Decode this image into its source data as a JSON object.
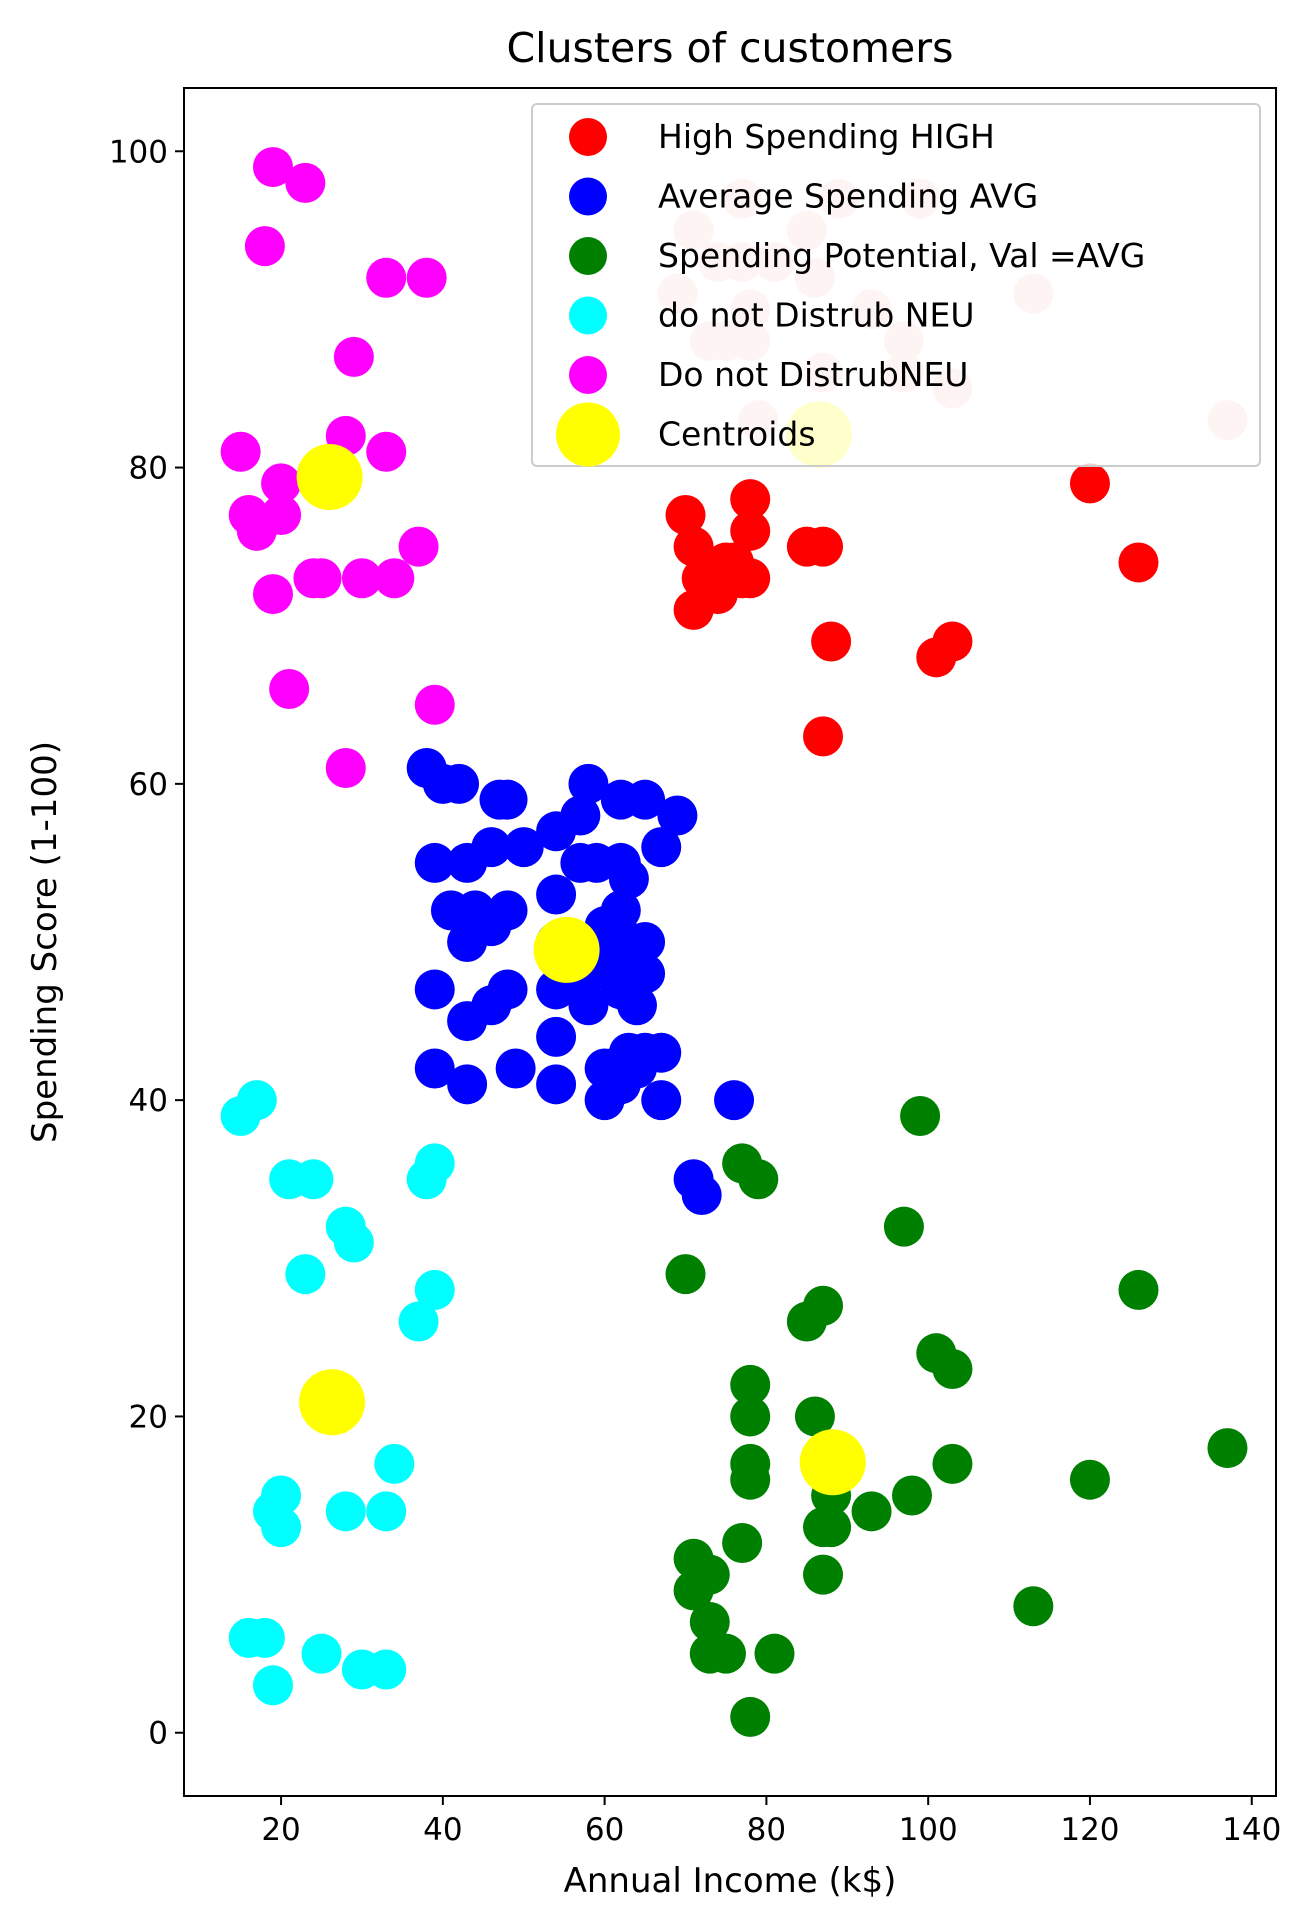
{
  "chart_data": {
    "type": "scatter",
    "title": "Clusters of customers",
    "xlabel": "Annual Income (k$)",
    "ylabel": "Spending Score (1-100)",
    "xlim": [
      8,
      143
    ],
    "ylim": [
      -4,
      104
    ],
    "xticks": [
      20,
      40,
      60,
      80,
      100,
      120,
      140
    ],
    "yticks": [
      0,
      20,
      40,
      60,
      80,
      100
    ],
    "grid": false,
    "legend_position": "top-right",
    "series": [
      {
        "name": "High Spending HIGH",
        "color": "#ff0000",
        "points": [
          [
            70,
            77
          ],
          [
            71,
            75
          ],
          [
            71,
            71
          ],
          [
            72,
            73
          ],
          [
            73,
            73
          ],
          [
            74,
            72
          ],
          [
            75,
            74
          ],
          [
            76,
            74
          ],
          [
            77,
            73
          ],
          [
            78,
            78
          ],
          [
            78,
            76
          ],
          [
            78,
            73
          ],
          [
            85,
            75
          ],
          [
            87,
            75
          ],
          [
            87,
            63
          ],
          [
            88,
            69
          ],
          [
            101,
            68
          ],
          [
            103,
            69
          ],
          [
            120,
            79
          ],
          [
            126,
            74
          ]
        ]
      },
      {
        "name": "Average Spending AVG",
        "color": "#0000ff",
        "points": [
          [
            38,
            61
          ],
          [
            39,
            55
          ],
          [
            39,
            47
          ],
          [
            39,
            42
          ],
          [
            40,
            60
          ],
          [
            41,
            52
          ],
          [
            42,
            60
          ],
          [
            43,
            55
          ],
          [
            43,
            50
          ],
          [
            43,
            45
          ],
          [
            43,
            41
          ],
          [
            44,
            52
          ],
          [
            46,
            56
          ],
          [
            46,
            51
          ],
          [
            46,
            46
          ],
          [
            47,
            59
          ],
          [
            48,
            59
          ],
          [
            48,
            52
          ],
          [
            48,
            47
          ],
          [
            49,
            42
          ],
          [
            50,
            56
          ],
          [
            54,
            57
          ],
          [
            54,
            53
          ],
          [
            54,
            50
          ],
          [
            54,
            47
          ],
          [
            54,
            44
          ],
          [
            54,
            41
          ],
          [
            57,
            58
          ],
          [
            57,
            55
          ],
          [
            58,
            60
          ],
          [
            58,
            48
          ],
          [
            58,
            46
          ],
          [
            59,
            55
          ],
          [
            60,
            51
          ],
          [
            60,
            49
          ],
          [
            60,
            42
          ],
          [
            60,
            40
          ],
          [
            61,
            42
          ],
          [
            62,
            59
          ],
          [
            62,
            55
          ],
          [
            62,
            52
          ],
          [
            62,
            47
          ],
          [
            62,
            41
          ],
          [
            63,
            54
          ],
          [
            63,
            50
          ],
          [
            63,
            43
          ],
          [
            64,
            48
          ],
          [
            64,
            46
          ],
          [
            64,
            42
          ],
          [
            65,
            59
          ],
          [
            65,
            50
          ],
          [
            65,
            48
          ],
          [
            65,
            43
          ],
          [
            67,
            56
          ],
          [
            67,
            40
          ],
          [
            67,
            43
          ],
          [
            69,
            58
          ],
          [
            71,
            35
          ],
          [
            72,
            34
          ],
          [
            76,
            40
          ]
        ]
      },
      {
        "name": "Spending Potential, Val =AVG",
        "color": "#008000",
        "points": [
          [
            70,
            29
          ],
          [
            71,
            11
          ],
          [
            71,
            9
          ],
          [
            73,
            7
          ],
          [
            73,
            5
          ],
          [
            73,
            10
          ],
          [
            75,
            5
          ],
          [
            77,
            12
          ],
          [
            77,
            36
          ],
          [
            78,
            22
          ],
          [
            78,
            20
          ],
          [
            78,
            17
          ],
          [
            78,
            16
          ],
          [
            78,
            1
          ],
          [
            79,
            35
          ],
          [
            81,
            5
          ],
          [
            85,
            26
          ],
          [
            86,
            20
          ],
          [
            87,
            27
          ],
          [
            87,
            13
          ],
          [
            87,
            10
          ],
          [
            88,
            15
          ],
          [
            88,
            13
          ],
          [
            93,
            14
          ],
          [
            97,
            32
          ],
          [
            98,
            15
          ],
          [
            99,
            39
          ],
          [
            101,
            24
          ],
          [
            103,
            23
          ],
          [
            103,
            17
          ],
          [
            113,
            8
          ],
          [
            120,
            16
          ],
          [
            126,
            28
          ],
          [
            137,
            18
          ]
        ]
      },
      {
        "name": "do not Distrub NEU",
        "color": "#00ffff",
        "points": [
          [
            15,
            39
          ],
          [
            16,
            6
          ],
          [
            17,
            40
          ],
          [
            18,
            6
          ],
          [
            19,
            3
          ],
          [
            19,
            14
          ],
          [
            20,
            15
          ],
          [
            20,
            13
          ],
          [
            21,
            35
          ],
          [
            23,
            29
          ],
          [
            24,
            35
          ],
          [
            25,
            5
          ],
          [
            28,
            32
          ],
          [
            28,
            14
          ],
          [
            29,
            31
          ],
          [
            30,
            4
          ],
          [
            33,
            4
          ],
          [
            33,
            14
          ],
          [
            34,
            17
          ],
          [
            37,
            26
          ],
          [
            38,
            35
          ],
          [
            39,
            36
          ],
          [
            39,
            28
          ]
        ]
      },
      {
        "name": "Do not DistrubNEU",
        "color": "#ff00ff",
        "points": [
          [
            15,
            81
          ],
          [
            16,
            77
          ],
          [
            17,
            76
          ],
          [
            18,
            94
          ],
          [
            19,
            99
          ],
          [
            19,
            72
          ],
          [
            20,
            79
          ],
          [
            20,
            77
          ],
          [
            21,
            66
          ],
          [
            23,
            98
          ],
          [
            24,
            73
          ],
          [
            25,
            73
          ],
          [
            28,
            82
          ],
          [
            28,
            61
          ],
          [
            29,
            87
          ],
          [
            30,
            73
          ],
          [
            33,
            92
          ],
          [
            33,
            81
          ],
          [
            34,
            73
          ],
          [
            37,
            75
          ],
          [
            38,
            92
          ],
          [
            39,
            65
          ]
        ]
      },
      {
        "name": "Centroids",
        "color": "#ffff00",
        "points": [
          [
            26,
            79.4
          ],
          [
            55.3,
            49.5
          ],
          [
            26.3,
            20.9
          ],
          [
            88.2,
            17.1
          ],
          [
            86.5,
            82.1
          ]
        ]
      }
    ],
    "faint_points": {
      "color": "#ffc8c8",
      "points": [
        [
          69,
          91
        ],
        [
          71,
          95
        ],
        [
          73,
          88
        ],
        [
          74,
          93
        ],
        [
          75,
          88
        ],
        [
          77,
          97
        ],
        [
          77,
          93
        ],
        [
          78,
          90
        ],
        [
          78,
          88
        ],
        [
          79,
          83
        ],
        [
          81,
          93
        ],
        [
          85,
          95
        ],
        [
          86,
          92
        ],
        [
          87,
          86
        ],
        [
          89,
          97
        ],
        [
          93,
          90
        ],
        [
          97,
          88
        ],
        [
          97,
          86
        ],
        [
          99,
          97
        ],
        [
          103,
          85
        ],
        [
          113,
          91
        ],
        [
          137,
          83
        ]
      ]
    }
  }
}
